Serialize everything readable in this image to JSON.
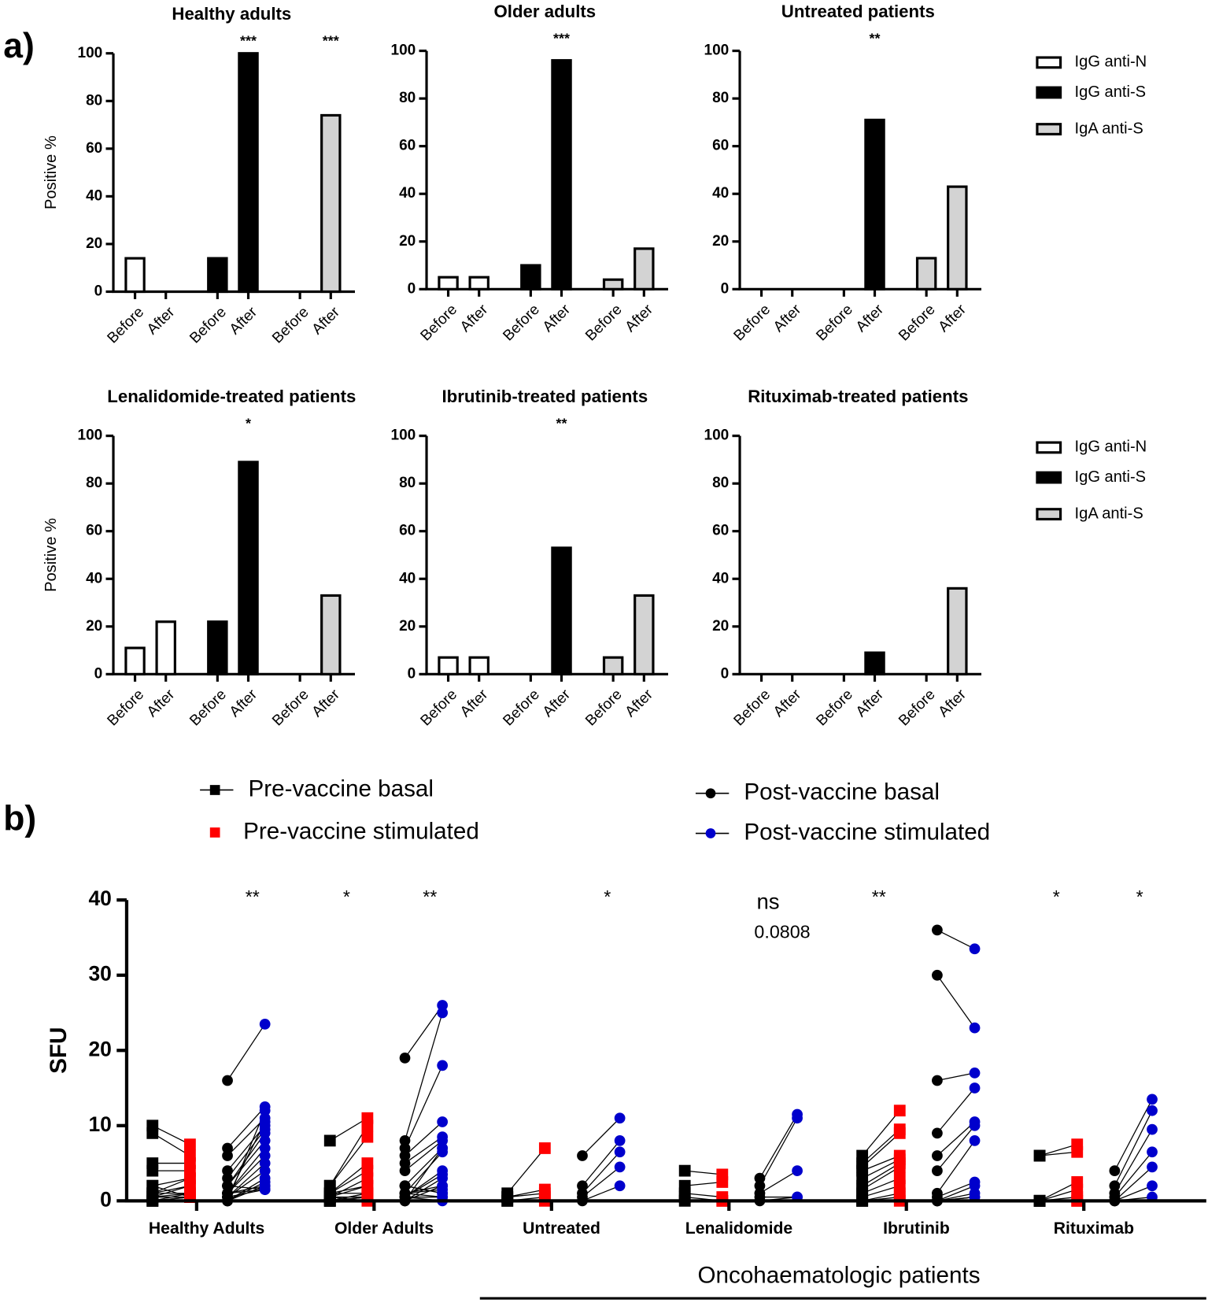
{
  "panel_labels": [
    "a)",
    "b)"
  ],
  "chart_data": [
    {
      "type": "bar",
      "title": "Healthy adults",
      "y_label": "Positive %",
      "categories": [
        "Before",
        "After"
      ],
      "ylim": [
        0,
        100
      ],
      "yticks": [
        0,
        20,
        40,
        60,
        80,
        100
      ],
      "series": [
        {
          "name": "IgG anti-N",
          "color": "#ffffff",
          "values": [
            14,
            0
          ],
          "annotations": [
            null,
            null
          ]
        },
        {
          "name": "IgG anti-S",
          "color": "#000000",
          "values": [
            14,
            100
          ],
          "annotations": [
            null,
            "***"
          ]
        },
        {
          "name": "IgA anti-S",
          "color": "#d3d3d3",
          "values": [
            0,
            74
          ],
          "annotations": [
            null,
            "***"
          ]
        }
      ]
    },
    {
      "type": "bar",
      "title": "Older adults",
      "categories": [
        "Before",
        "After"
      ],
      "ylim": [
        0,
        100
      ],
      "yticks": [
        0,
        20,
        40,
        60,
        80,
        100
      ],
      "series": [
        {
          "name": "IgG anti-N",
          "color": "#ffffff",
          "values": [
            5,
            5
          ],
          "annotations": [
            null,
            null
          ]
        },
        {
          "name": "IgG anti-S",
          "color": "#000000",
          "values": [
            10,
            96
          ],
          "annotations": [
            null,
            "***"
          ]
        },
        {
          "name": "IgA anti-S",
          "color": "#d3d3d3",
          "values": [
            4,
            17
          ],
          "annotations": [
            null,
            null
          ]
        }
      ]
    },
    {
      "type": "bar",
      "title": "Untreated patients",
      "categories": [
        "Before",
        "After"
      ],
      "legend": "right",
      "ylim": [
        0,
        100
      ],
      "yticks": [
        0,
        20,
        40,
        60,
        80,
        100
      ],
      "series": [
        {
          "name": "IgG anti-N",
          "color": "#ffffff",
          "values": [
            0,
            0
          ],
          "annotations": [
            null,
            null
          ]
        },
        {
          "name": "IgG anti-S",
          "color": "#000000",
          "values": [
            0,
            71
          ],
          "annotations": [
            null,
            "**"
          ]
        },
        {
          "name": "IgA anti-S",
          "color": "#d3d3d3",
          "values": [
            13,
            43
          ],
          "annotations": [
            null,
            null
          ]
        }
      ]
    },
    {
      "type": "bar",
      "title": "Lenalidomide-treated patients",
      "y_label": "Positive %",
      "categories": [
        "Before",
        "After"
      ],
      "ylim": [
        0,
        100
      ],
      "yticks": [
        0,
        20,
        40,
        60,
        80,
        100
      ],
      "series": [
        {
          "name": "IgG anti-N",
          "color": "#ffffff",
          "values": [
            11,
            22
          ],
          "annotations": [
            null,
            null
          ]
        },
        {
          "name": "IgG anti-S",
          "color": "#000000",
          "values": [
            22,
            89
          ],
          "annotations": [
            null,
            "*"
          ]
        },
        {
          "name": "IgA anti-S",
          "color": "#d3d3d3",
          "values": [
            0,
            33
          ],
          "annotations": [
            null,
            null
          ]
        }
      ]
    },
    {
      "type": "bar",
      "title": "Ibrutinib-treated patients",
      "categories": [
        "Before",
        "After"
      ],
      "ylim": [
        0,
        100
      ],
      "yticks": [
        0,
        20,
        40,
        60,
        80,
        100
      ],
      "series": [
        {
          "name": "IgG anti-N",
          "color": "#ffffff",
          "values": [
            7,
            7
          ],
          "annotations": [
            null,
            null
          ]
        },
        {
          "name": "IgG anti-S",
          "color": "#000000",
          "values": [
            0,
            53
          ],
          "annotations": [
            null,
            "**"
          ]
        },
        {
          "name": "IgA anti-S",
          "color": "#d3d3d3",
          "values": [
            7,
            33
          ],
          "annotations": [
            null,
            null
          ]
        }
      ]
    },
    {
      "type": "bar",
      "title": "Rituximab-treated patients",
      "categories": [
        "Before",
        "After"
      ],
      "legend": "right",
      "ylim": [
        0,
        100
      ],
      "yticks": [
        0,
        20,
        40,
        60,
        80,
        100
      ],
      "series": [
        {
          "name": "IgG anti-N",
          "color": "#ffffff",
          "values": [
            0,
            0
          ],
          "annotations": [
            null,
            null
          ]
        },
        {
          "name": "IgG anti-S",
          "color": "#000000",
          "values": [
            0,
            9
          ],
          "annotations": [
            null,
            null
          ]
        },
        {
          "name": "IgA anti-S",
          "color": "#d3d3d3",
          "values": [
            0,
            36
          ],
          "annotations": [
            null,
            null
          ]
        }
      ]
    },
    {
      "type": "paired_dot",
      "y_label": "SFU",
      "ylim": [
        0,
        40
      ],
      "yticks": [
        0,
        10,
        20,
        30,
        40
      ],
      "patient_group_label": "Oncohaematologic patients",
      "series": [
        {
          "name": "Pre-vaccine basal",
          "color": "#000000",
          "marker": "square",
          "legend_line": true
        },
        {
          "name": "Pre-vaccine stimulated",
          "color": "#ff0000",
          "marker": "square",
          "legend_line": false
        },
        {
          "name": "Post-vaccine basal",
          "color": "#000000",
          "marker": "circle",
          "legend_line": true
        },
        {
          "name": "Post-vaccine stimulated",
          "color": "#0000cc",
          "marker": "circle",
          "legend_line": true
        }
      ],
      "groups": [
        {
          "name": "Healthy Adults",
          "significance": [
            null,
            "**"
          ],
          "values": [
            [
              10,
              9,
              5,
              4,
              2,
              1,
              1,
              0.5,
              0.5,
              0,
              0,
              0,
              0.5,
              1,
              2
            ],
            [
              7.5,
              6,
              5,
              4,
              3,
              2,
              1,
              1,
              0.5,
              0.5,
              0.5,
              1,
              2,
              3,
              0.5
            ],
            [
              16,
              7,
              6,
              4,
              3,
              2,
              2,
              1,
              1,
              0.5,
              0.5,
              0,
              0,
              0,
              0.5,
              1,
              1,
              2,
              0.5,
              0
            ],
            [
              23.5,
              12.5,
              11,
              10,
              9.5,
              9,
              8,
              7,
              6,
              5,
              4,
              3,
              2.5,
              2,
              1.5,
              1.5,
              2,
              1.5,
              10.5,
              12
            ]
          ]
        },
        {
          "name": "Older Adults",
          "significance": [
            "*",
            "**"
          ],
          "values": [
            [
              8,
              2,
              2,
              1,
              1,
              0.5,
              0.5,
              0,
              0,
              0,
              0,
              0.5,
              1,
              1,
              0.5
            ],
            [
              11,
              10,
              8.5,
              5,
              4,
              3,
              2,
              1,
              1,
              0.5,
              0.5,
              0.5,
              2,
              1,
              0
            ],
            [
              19,
              8,
              7,
              6,
              5,
              4,
              2,
              1,
              0.5,
              0.5,
              0,
              0,
              1,
              2,
              0.5,
              1,
              0.5,
              0,
              1,
              2
            ],
            [
              26,
              25,
              18,
              10.5,
              8.5,
              8,
              7,
              6.5,
              4,
              3.5,
              3,
              2,
              1.5,
              1,
              0.5,
              0.5,
              0,
              7,
              2,
              1
            ]
          ]
        },
        {
          "name": "Untreated",
          "significance": [
            null,
            "*"
          ],
          "values": [
            [
              1,
              0.5,
              0.5,
              0,
              0
            ],
            [
              7,
              1.5,
              1,
              0.5,
              0
            ],
            [
              6,
              2,
              1,
              0.5,
              0
            ],
            [
              11,
              8,
              6.5,
              4.5,
              2
            ]
          ]
        },
        {
          "name": "Lenalidomide",
          "significance": [
            null,
            "ns"
          ],
          "p_label": "0.0808",
          "values": [
            [
              4,
              2,
              1,
              0.5,
              0
            ],
            [
              3.5,
              2.5,
              0.5,
              0,
              0
            ],
            [
              3,
              2,
              1,
              0.5,
              0
            ],
            [
              11.5,
              11,
              4,
              0.5,
              0.5
            ]
          ]
        },
        {
          "name": "Ibrutinib",
          "significance": [
            "**",
            null
          ],
          "values": [
            [
              6,
              5,
              4.5,
              4,
              3,
              2,
              1.5,
              1,
              0.5,
              0,
              0,
              0
            ],
            [
              12,
              9.5,
              9,
              6,
              5.5,
              5,
              4.5,
              3,
              2,
              1,
              0.5,
              0
            ],
            [
              36,
              30,
              16,
              9,
              6,
              4,
              1,
              0.5,
              0,
              0,
              0,
              0
            ],
            [
              33.5,
              23,
              17,
              15,
              10.5,
              10,
              8,
              2.5,
              2,
              1,
              0.5,
              0.5
            ]
          ]
        },
        {
          "name": "Rituximab",
          "significance": [
            "*",
            "*"
          ],
          "values": [
            [
              6,
              6,
              0,
              0,
              0,
              0,
              0
            ],
            [
              7.5,
              6.5,
              2.5,
              1.5,
              0.5,
              0,
              0
            ],
            [
              4,
              2,
              1,
              0.5,
              0,
              0,
              0
            ],
            [
              13.5,
              12,
              9.5,
              6.5,
              4.5,
              2,
              0.5
            ]
          ]
        }
      ]
    }
  ]
}
